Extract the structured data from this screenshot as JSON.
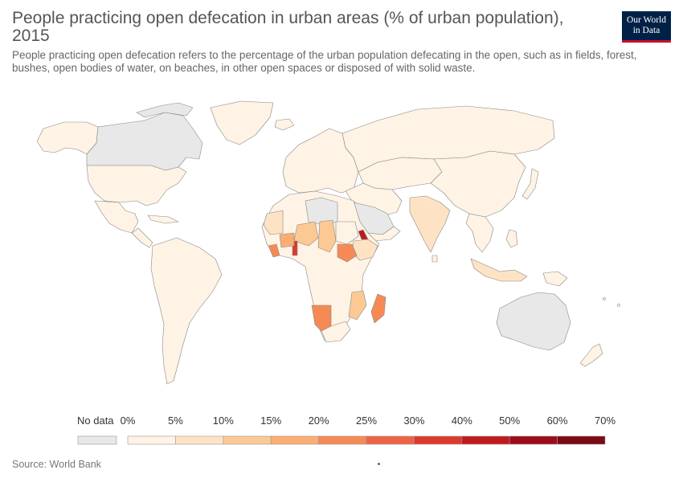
{
  "header": {
    "title": "People practicing open defecation in urban areas (% of urban population), 2015",
    "subtitle": "People practicing open defecation refers to the percentage of the urban population defecating in the open, such as in fields, forest, bushes, open bodies of water, on beaches, in other open spaces or disposed of with solid waste.",
    "logo_line1": "Our World",
    "logo_line2": "in Data"
  },
  "legend": {
    "no_data_label": "No data",
    "no_data_color": "#e8e8e8",
    "labels": [
      "0%",
      "5%",
      "10%",
      "15%",
      "20%",
      "25%",
      "30%",
      "40%",
      "50%",
      "60%",
      "70%"
    ],
    "colors": [
      "#fef3e4",
      "#fde3c4",
      "#fcc994",
      "#fbad74",
      "#f68a55",
      "#ee6346",
      "#dc3a2d",
      "#c01a1e",
      "#9e0b19",
      "#7a0a14"
    ]
  },
  "footer": {
    "source": "Source: World Bank"
  },
  "chart_data": {
    "type": "choropleth",
    "year": 2015,
    "unit": "% of urban population",
    "highlighted_regions": [
      {
        "name": "Eritrea",
        "bin": "40%-50%"
      },
      {
        "name": "South Sudan",
        "bin": "20%-25%"
      },
      {
        "name": "Namibia",
        "bin": "20%-25%"
      },
      {
        "name": "Madagascar",
        "bin": "20%-25%"
      },
      {
        "name": "Togo",
        "bin": "30%-40%"
      },
      {
        "name": "Liberia",
        "bin": "20%-25%"
      },
      {
        "name": "Niger",
        "bin": "10%-15%"
      },
      {
        "name": "Chad",
        "bin": "10%-15%"
      },
      {
        "name": "Ethiopia",
        "bin": "5%-10%"
      },
      {
        "name": "India",
        "bin": "5%-10%"
      },
      {
        "name": "Mozambique",
        "bin": "5%-10%"
      }
    ],
    "no_data_regions": [
      "Canada",
      "Australia",
      "Libya",
      "Saudi Arabia",
      "Greenland (partial)"
    ]
  }
}
